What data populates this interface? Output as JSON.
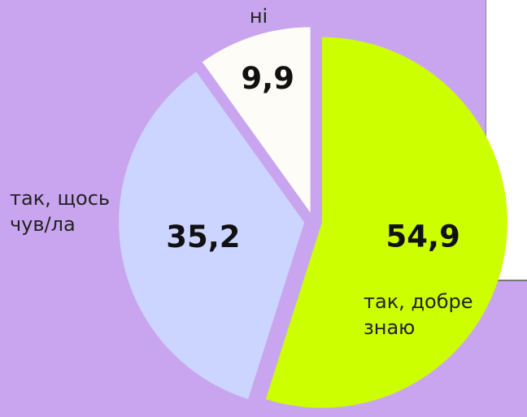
{
  "chart_data": {
    "type": "pie",
    "categories": [
      "так, добре знаю",
      "так, щось чув/ла",
      "ні"
    ],
    "values": [
      54.9,
      35.2,
      9.9
    ],
    "value_labels": [
      "54,9",
      "35,2",
      "9,9"
    ],
    "colors": [
      "#ccff00",
      "#ccd5ff",
      "#fdfcf7"
    ]
  }
}
